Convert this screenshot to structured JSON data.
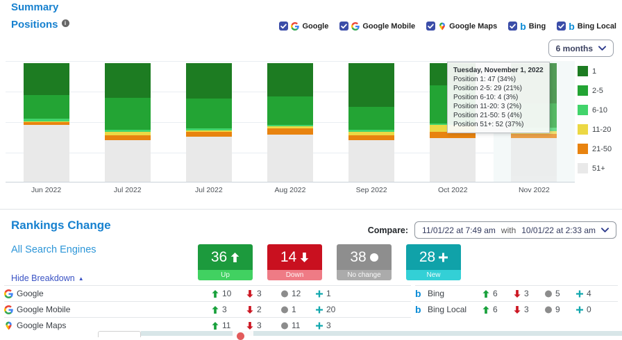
{
  "header": {
    "title": "Summary",
    "section": "Positions",
    "period": "6 months"
  },
  "engines": [
    {
      "label": "Google",
      "icon": "google",
      "checked": true
    },
    {
      "label": "Google Mobile",
      "icon": "google",
      "checked": true
    },
    {
      "label": "Google Maps",
      "icon": "maps",
      "checked": true
    },
    {
      "label": "Bing",
      "icon": "bing",
      "checked": true
    },
    {
      "label": "Bing Local",
      "icon": "bing",
      "checked": true
    }
  ],
  "chart_data": {
    "type": "bar",
    "stacked": true,
    "unit": "percent",
    "categories": [
      "Jun 2022",
      "Jul 2022",
      "Jul 2022",
      "Aug 2022",
      "Sep 2022",
      "Oct 2022",
      "Nov 2022"
    ],
    "series": [
      {
        "name": "1",
        "color": "#1d7c22",
        "values": [
          27,
          29,
          30,
          28,
          37,
          19,
          34
        ]
      },
      {
        "name": "2-5",
        "color": "#23a434",
        "values": [
          20,
          27,
          25,
          24,
          19,
          32,
          21
        ]
      },
      {
        "name": "6-10",
        "color": "#42d46b",
        "values": [
          2,
          2,
          2,
          1,
          2,
          1,
          3
        ]
      },
      {
        "name": "11-20",
        "color": "#ecd844",
        "values": [
          1,
          3,
          1,
          2,
          3,
          6,
          2
        ]
      },
      {
        "name": "21-50",
        "color": "#e8830f",
        "values": [
          2,
          4,
          4,
          5,
          4,
          5,
          4
        ]
      },
      {
        "name": "51+",
        "color": "#e9e9e9",
        "values": [
          48,
          35,
          38,
          40,
          35,
          37,
          37
        ]
      }
    ],
    "hovered_index": 6,
    "legend_position": "right",
    "grid": true,
    "xlabel": "",
    "ylabel": ""
  },
  "tooltip": {
    "title": "Tuesday, November 1, 2022",
    "lines": [
      "Position 1: 47 (34%)",
      "Position 2-5: 29 (21%)",
      "Position 6-10: 4 (3%)",
      "Position 11-20: 3 (2%)",
      "Position 21-50: 5 (4%)",
      "Position 51+: 52 (37%)"
    ]
  },
  "rankings": {
    "title": "Rankings Change",
    "subtitle": "All Search Engines",
    "compare_label": "Compare:",
    "compare_value1": "11/01/22 at 7:49 am",
    "compare_with": "with",
    "compare_value2": "10/01/22 at 2:33 am",
    "breakdown_toggle": "Hide Breakdown",
    "cards": [
      {
        "value": 36,
        "label": "Up",
        "glyph": "up",
        "color_top": "#1c9a3d",
        "color_bottom": "#41d161"
      },
      {
        "value": 14,
        "label": "Down",
        "glyph": "down",
        "color_top": "#c9101f",
        "color_bottom": "#ef7b85"
      },
      {
        "value": 38,
        "label": "No change",
        "glyph": "dot",
        "color_top": "#8e8e8e",
        "color_bottom": "#ababab"
      },
      {
        "value": 28,
        "label": "New",
        "glyph": "plus",
        "color_top": "#10a2a9",
        "color_bottom": "#33d0d6"
      }
    ],
    "breakdown_left": [
      {
        "name": "Google",
        "icon": "google",
        "up": 10,
        "down": 3,
        "same": 12,
        "new": 1
      },
      {
        "name": "Google Mobile",
        "icon": "google",
        "up": 3,
        "down": 2,
        "same": 1,
        "new": 20
      },
      {
        "name": "Google Maps",
        "icon": "maps",
        "up": 11,
        "down": 3,
        "same": 11,
        "new": 3
      }
    ],
    "breakdown_right": [
      {
        "name": "Bing",
        "icon": "bing",
        "up": 6,
        "down": 3,
        "same": 5,
        "new": 4
      },
      {
        "name": "Bing Local",
        "icon": "bing",
        "up": 6,
        "down": 3,
        "same": 9,
        "new": 0
      }
    ]
  },
  "colors": {
    "heading_blue": "#1781cf",
    "subheading_blue": "#2d96d8",
    "link_blue": "#3952c4",
    "checkbox_navy": "#3b4da8",
    "up_green": "#18a03b",
    "down_red": "#cc1622",
    "nochange_gray": "#8c8c8c",
    "new_teal": "#13a8ae"
  }
}
